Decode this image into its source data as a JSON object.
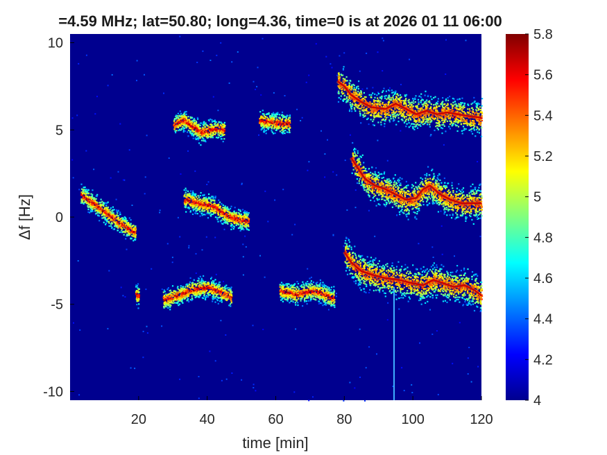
{
  "chart_data": {
    "type": "heatmap",
    "title": "=4.59 MHz;  lat=50.80; long=4.36, time=0 is at 2026 01 11 06:00",
    "xlabel": "time [min]",
    "ylabel": "Δf [Hz]",
    "xlim": [
      0,
      120
    ],
    "ylim": [
      -10.5,
      10.5
    ],
    "xticks": [
      20,
      40,
      60,
      80,
      100,
      120
    ],
    "xtick_labels": [
      "20",
      "40",
      "60",
      "80",
      "100",
      "120"
    ],
    "yticks": [
      10,
      5,
      0,
      -5,
      -10
    ],
    "ytick_labels": [
      "10",
      "5",
      "0",
      "-5",
      "-10"
    ],
    "colorbar": {
      "range": [
        4,
        5.8
      ],
      "ticks": [
        4,
        4.2,
        4.4,
        4.6,
        4.8,
        5,
        5.2,
        5.4,
        5.6,
        5.8
      ],
      "tick_labels": [
        "4",
        "4.2",
        "4.4",
        "4.6",
        "4.8",
        "5",
        "5.2",
        "5.4",
        "5.6",
        "5.8"
      ],
      "colormap": "jet"
    },
    "background_color": "#00008f",
    "grid": false,
    "traces": [
      {
        "name": "upper",
        "points": [
          [
            78,
            7.8
          ],
          [
            80,
            7.5
          ],
          [
            82,
            7.0
          ],
          [
            85,
            6.6
          ],
          [
            88,
            6.3
          ],
          [
            92,
            6.2
          ],
          [
            95,
            6.5
          ],
          [
            98,
            6.2
          ],
          [
            101,
            5.9
          ],
          [
            104,
            6.1
          ],
          [
            107,
            5.9
          ],
          [
            110,
            6.0
          ],
          [
            113,
            5.9
          ],
          [
            116,
            5.8
          ],
          [
            120,
            5.7
          ]
        ]
      },
      {
        "name": "middle",
        "points": [
          [
            82,
            3.4
          ],
          [
            84,
            2.8
          ],
          [
            86,
            2.2
          ],
          [
            89,
            1.8
          ],
          [
            92,
            1.6
          ],
          [
            95,
            1.3
          ],
          [
            98,
            1.0
          ],
          [
            101,
            1.1
          ],
          [
            103,
            1.6
          ],
          [
            105,
            1.8
          ],
          [
            108,
            1.3
          ],
          [
            111,
            1.0
          ],
          [
            114,
            0.8
          ],
          [
            117,
            0.8
          ],
          [
            120,
            0.8
          ]
        ]
      },
      {
        "name": "lower",
        "points": [
          [
            80,
            -2.0
          ],
          [
            82,
            -2.6
          ],
          [
            85,
            -3.1
          ],
          [
            88,
            -3.3
          ],
          [
            92,
            -3.5
          ],
          [
            96,
            -3.6
          ],
          [
            100,
            -3.8
          ],
          [
            103,
            -3.9
          ],
          [
            106,
            -3.6
          ],
          [
            109,
            -3.8
          ],
          [
            112,
            -4.0
          ],
          [
            115,
            -3.9
          ],
          [
            118,
            -4.2
          ],
          [
            120,
            -4.5
          ]
        ]
      }
    ],
    "blobs": [
      {
        "x": [
          30,
          45
        ],
        "points": [
          [
            30,
            5.3
          ],
          [
            33,
            5.6
          ],
          [
            35,
            5.3
          ],
          [
            38,
            4.9
          ],
          [
            43,
            5.1
          ],
          [
            45,
            5.0
          ]
        ]
      },
      {
        "x": [
          55,
          64
        ],
        "points": [
          [
            55,
            5.6
          ],
          [
            58,
            5.5
          ],
          [
            61,
            5.4
          ],
          [
            64,
            5.4
          ]
        ]
      },
      {
        "x": [
          3,
          19
        ],
        "points": [
          [
            3,
            1.3
          ],
          [
            6,
            0.9
          ],
          [
            9,
            0.5
          ],
          [
            12,
            0.0
          ],
          [
            15,
            -0.4
          ],
          [
            18,
            -0.8
          ]
        ]
      },
      {
        "x": [
          33,
          52
        ],
        "points": [
          [
            34,
            1.0
          ],
          [
            38,
            0.8
          ],
          [
            42,
            0.6
          ],
          [
            44,
            0.3
          ],
          [
            47,
            0.0
          ],
          [
            51,
            -0.2
          ]
        ]
      },
      {
        "x": [
          27,
          47
        ],
        "points": [
          [
            28,
            -4.7
          ],
          [
            32,
            -4.4
          ],
          [
            36,
            -4.1
          ],
          [
            40,
            -4.0
          ],
          [
            44,
            -4.3
          ],
          [
            47,
            -4.6
          ]
        ]
      },
      {
        "x": [
          61,
          77
        ],
        "points": [
          [
            61,
            -4.2
          ],
          [
            66,
            -4.4
          ],
          [
            70,
            -4.2
          ],
          [
            73,
            -4.3
          ],
          [
            76,
            -4.6
          ]
        ]
      },
      {
        "x": [
          19,
          20
        ],
        "points": [
          [
            19,
            -4.4
          ],
          [
            20,
            -4.5
          ]
        ]
      }
    ],
    "vertical_line": {
      "x": 94.5,
      "from_y": -10.5,
      "to_y": -4.0
    }
  }
}
